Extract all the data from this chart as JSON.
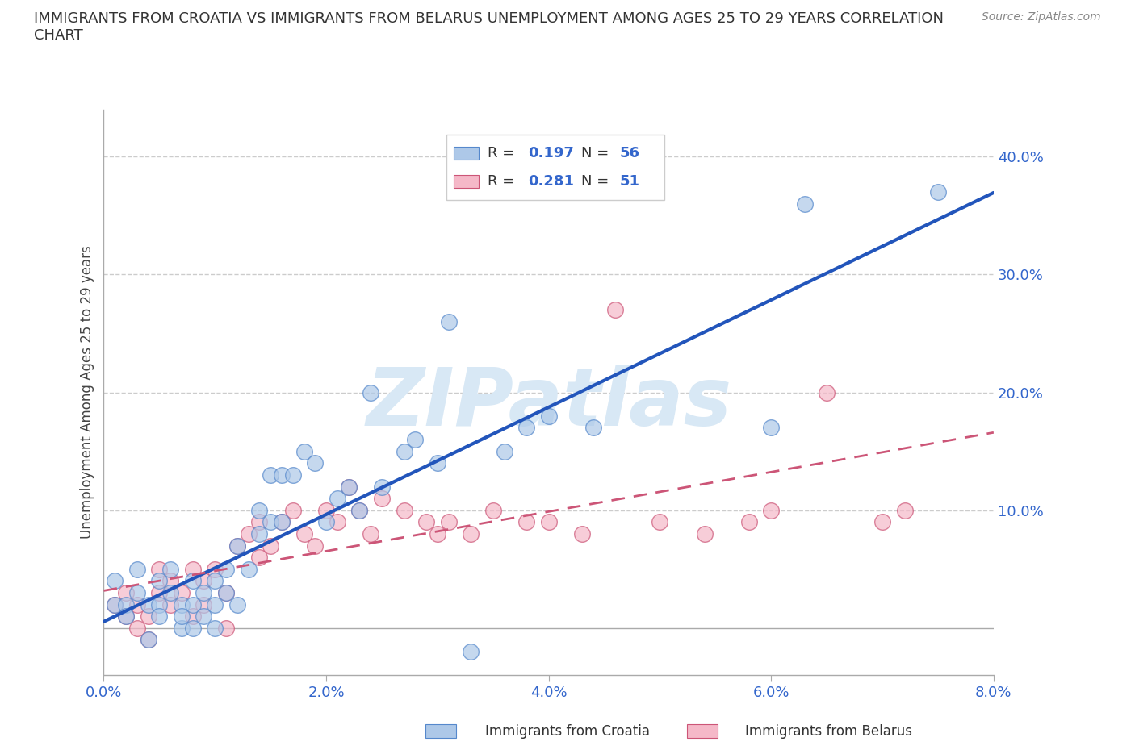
{
  "title": "IMMIGRANTS FROM CROATIA VS IMMIGRANTS FROM BELARUS UNEMPLOYMENT AMONG AGES 25 TO 29 YEARS CORRELATION\nCHART",
  "source": "Source: ZipAtlas.com",
  "ylabel": "Unemployment Among Ages 25 to 29 years",
  "xlim": [
    0.0,
    0.08
  ],
  "ylim": [
    -0.04,
    0.44
  ],
  "xticks": [
    0.0,
    0.02,
    0.04,
    0.06,
    0.08
  ],
  "xtick_labels": [
    "0.0%",
    "2.0%",
    "4.0%",
    "6.0%",
    "8.0%"
  ],
  "yticks_right": [
    0.1,
    0.2,
    0.3,
    0.4
  ],
  "ytick_labels_right": [
    "10.0%",
    "20.0%",
    "30.0%",
    "40.0%"
  ],
  "grid_color": "#cccccc",
  "background_color": "#ffffff",
  "watermark": "ZIPatlas",
  "watermark_color": "#d8e8f5",
  "croatia_color": "#adc8e8",
  "croatia_edge": "#5588cc",
  "belarus_color": "#f5b8c8",
  "belarus_edge": "#cc5577",
  "croatia_line_color": "#2255bb",
  "belarus_line_color": "#cc5577",
  "croatia_R": 0.197,
  "croatia_N": 56,
  "belarus_R": 0.281,
  "belarus_N": 51,
  "croatia_scatter_x": [
    0.001,
    0.001,
    0.002,
    0.002,
    0.003,
    0.003,
    0.004,
    0.004,
    0.005,
    0.005,
    0.005,
    0.006,
    0.006,
    0.007,
    0.007,
    0.007,
    0.008,
    0.008,
    0.008,
    0.009,
    0.009,
    0.01,
    0.01,
    0.01,
    0.011,
    0.011,
    0.012,
    0.012,
    0.013,
    0.014,
    0.014,
    0.015,
    0.015,
    0.016,
    0.016,
    0.017,
    0.018,
    0.019,
    0.02,
    0.021,
    0.022,
    0.023,
    0.024,
    0.025,
    0.027,
    0.028,
    0.03,
    0.031,
    0.033,
    0.036,
    0.038,
    0.04,
    0.044,
    0.06,
    0.063,
    0.075
  ],
  "croatia_scatter_y": [
    0.02,
    0.04,
    0.02,
    0.01,
    0.03,
    0.05,
    0.02,
    -0.01,
    0.02,
    0.01,
    0.04,
    0.03,
    0.05,
    0.02,
    0.0,
    0.01,
    0.04,
    0.02,
    0.0,
    0.01,
    0.03,
    0.02,
    0.04,
    0.0,
    0.03,
    0.05,
    0.02,
    0.07,
    0.05,
    0.08,
    0.1,
    0.09,
    0.13,
    0.09,
    0.13,
    0.13,
    0.15,
    0.14,
    0.09,
    0.11,
    0.12,
    0.1,
    0.2,
    0.12,
    0.15,
    0.16,
    0.14,
    0.26,
    -0.02,
    0.15,
    0.17,
    0.18,
    0.17,
    0.17,
    0.36,
    0.37
  ],
  "belarus_scatter_x": [
    0.001,
    0.002,
    0.002,
    0.003,
    0.003,
    0.004,
    0.004,
    0.005,
    0.005,
    0.006,
    0.006,
    0.007,
    0.008,
    0.008,
    0.009,
    0.009,
    0.01,
    0.011,
    0.011,
    0.012,
    0.013,
    0.014,
    0.014,
    0.015,
    0.016,
    0.017,
    0.018,
    0.019,
    0.02,
    0.021,
    0.022,
    0.023,
    0.024,
    0.025,
    0.027,
    0.029,
    0.03,
    0.031,
    0.033,
    0.035,
    0.038,
    0.04,
    0.043,
    0.046,
    0.05,
    0.054,
    0.058,
    0.06,
    0.065,
    0.07,
    0.072
  ],
  "belarus_scatter_y": [
    0.02,
    0.01,
    0.03,
    0.0,
    0.02,
    0.01,
    -0.01,
    0.03,
    0.05,
    0.02,
    0.04,
    0.03,
    0.01,
    0.05,
    0.02,
    0.04,
    0.05,
    0.03,
    0.0,
    0.07,
    0.08,
    0.06,
    0.09,
    0.07,
    0.09,
    0.1,
    0.08,
    0.07,
    0.1,
    0.09,
    0.12,
    0.1,
    0.08,
    0.11,
    0.1,
    0.09,
    0.08,
    0.09,
    0.08,
    0.1,
    0.09,
    0.09,
    0.08,
    0.27,
    0.09,
    0.08,
    0.09,
    0.1,
    0.2,
    0.09,
    0.1
  ]
}
